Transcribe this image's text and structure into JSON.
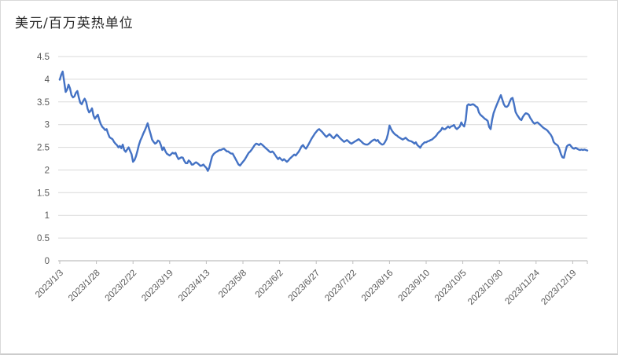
{
  "style": {
    "line_color": "#4472C4",
    "grid_color": "#D9D9D9",
    "axis_color": "#BFBFBF",
    "label_color": "#595959",
    "title_color": "#262626",
    "background": "#FFFFFF"
  },
  "chart_data": {
    "type": "line",
    "title": "美元/百万英热单位",
    "xlabel": "",
    "ylabel": "",
    "legend": "none",
    "grid": true,
    "ylim": [
      0,
      4.5
    ],
    "ytick_labels": [
      "0",
      "0.5",
      "1",
      "1.5",
      "2",
      "2.5",
      "3",
      "3.5",
      "4",
      "4.5"
    ],
    "x_start_date": "2023/1/3",
    "x_tick_interval_days": 25,
    "x_total_days": 360,
    "x_tick_labels": [
      "2023/1/3",
      "2023/1/28",
      "2023/2/22",
      "2023/3/19",
      "2023/4/13",
      "2023/5/8",
      "2023/6/2",
      "2023/6/27",
      "2023/7/22",
      "2023/8/16",
      "2023/9/10",
      "2023/10/5",
      "2023/10/30",
      "2023/11/24",
      "2023/12/19"
    ],
    "series": [
      {
        "name": "美元/百万英热单位",
        "color": "#4472C4",
        "frequency": "daily",
        "values": [
          3.99,
          4.1,
          4.17,
          3.95,
          3.72,
          3.77,
          3.88,
          3.8,
          3.65,
          3.6,
          3.62,
          3.7,
          3.74,
          3.6,
          3.48,
          3.45,
          3.52,
          3.57,
          3.5,
          3.35,
          3.27,
          3.3,
          3.36,
          3.2,
          3.13,
          3.18,
          3.22,
          3.1,
          3.01,
          2.95,
          2.92,
          2.88,
          2.9,
          2.8,
          2.72,
          2.7,
          2.68,
          2.62,
          2.58,
          2.55,
          2.5,
          2.53,
          2.48,
          2.56,
          2.44,
          2.4,
          2.45,
          2.5,
          2.42,
          2.35,
          2.18,
          2.22,
          2.3,
          2.42,
          2.55,
          2.65,
          2.72,
          2.8,
          2.87,
          2.95,
          3.03,
          2.9,
          2.79,
          2.67,
          2.62,
          2.58,
          2.6,
          2.65,
          2.63,
          2.55,
          2.44,
          2.5,
          2.42,
          2.36,
          2.34,
          2.32,
          2.35,
          2.38,
          2.36,
          2.38,
          2.3,
          2.24,
          2.26,
          2.28,
          2.27,
          2.2,
          2.15,
          2.15,
          2.21,
          2.18,
          2.12,
          2.12,
          2.15,
          2.17,
          2.15,
          2.12,
          2.09,
          2.1,
          2.12,
          2.08,
          2.05,
          1.98,
          2.05,
          2.18,
          2.3,
          2.35,
          2.38,
          2.4,
          2.42,
          2.44,
          2.44,
          2.46,
          2.47,
          2.44,
          2.41,
          2.41,
          2.38,
          2.36,
          2.36,
          2.3,
          2.24,
          2.18,
          2.12,
          2.1,
          2.14,
          2.18,
          2.22,
          2.27,
          2.33,
          2.38,
          2.41,
          2.45,
          2.5,
          2.55,
          2.58,
          2.57,
          2.55,
          2.58,
          2.56,
          2.53,
          2.5,
          2.47,
          2.44,
          2.41,
          2.39,
          2.41,
          2.38,
          2.33,
          2.28,
          2.24,
          2.27,
          2.24,
          2.21,
          2.24,
          2.21,
          2.18,
          2.21,
          2.25,
          2.28,
          2.31,
          2.34,
          2.32,
          2.36,
          2.4,
          2.46,
          2.52,
          2.55,
          2.5,
          2.47,
          2.52,
          2.58,
          2.64,
          2.7,
          2.75,
          2.8,
          2.84,
          2.88,
          2.9,
          2.87,
          2.84,
          2.8,
          2.76,
          2.73,
          2.76,
          2.79,
          2.76,
          2.72,
          2.7,
          2.74,
          2.78,
          2.75,
          2.71,
          2.68,
          2.65,
          2.62,
          2.64,
          2.66,
          2.63,
          2.6,
          2.58,
          2.6,
          2.62,
          2.64,
          2.66,
          2.68,
          2.65,
          2.62,
          2.59,
          2.57,
          2.56,
          2.56,
          2.58,
          2.61,
          2.64,
          2.66,
          2.67,
          2.64,
          2.66,
          2.61,
          2.58,
          2.56,
          2.57,
          2.62,
          2.68,
          2.8,
          2.98,
          2.91,
          2.85,
          2.81,
          2.78,
          2.76,
          2.73,
          2.71,
          2.69,
          2.67,
          2.69,
          2.71,
          2.68,
          2.65,
          2.64,
          2.63,
          2.61,
          2.58,
          2.61,
          2.55,
          2.52,
          2.49,
          2.55,
          2.58,
          2.61,
          2.61,
          2.63,
          2.64,
          2.66,
          2.67,
          2.7,
          2.73,
          2.76,
          2.81,
          2.84,
          2.87,
          2.93,
          2.9,
          2.9,
          2.93,
          2.96,
          2.93,
          2.96,
          2.97,
          2.99,
          2.93,
          2.9,
          2.93,
          2.96,
          3.05,
          2.99,
          2.96,
          3.1,
          3.42,
          3.45,
          3.43,
          3.44,
          3.45,
          3.43,
          3.4,
          3.38,
          3.27,
          3.22,
          3.19,
          3.16,
          3.13,
          3.11,
          3.08,
          2.95,
          2.9,
          3.1,
          3.25,
          3.34,
          3.42,
          3.5,
          3.58,
          3.65,
          3.55,
          3.45,
          3.4,
          3.39,
          3.42,
          3.5,
          3.57,
          3.59,
          3.45,
          3.28,
          3.22,
          3.17,
          3.12,
          3.1,
          3.17,
          3.22,
          3.25,
          3.24,
          3.22,
          3.15,
          3.1,
          3.05,
          3.02,
          3.04,
          3.05,
          3.02,
          2.99,
          2.96,
          2.93,
          2.91,
          2.89,
          2.86,
          2.82,
          2.78,
          2.72,
          2.62,
          2.58,
          2.56,
          2.53,
          2.45,
          2.35,
          2.28,
          2.27,
          2.4,
          2.52,
          2.55,
          2.56,
          2.52,
          2.48,
          2.47,
          2.49,
          2.47,
          2.45,
          2.44,
          2.45,
          2.44,
          2.45,
          2.44,
          2.43
        ]
      }
    ]
  }
}
